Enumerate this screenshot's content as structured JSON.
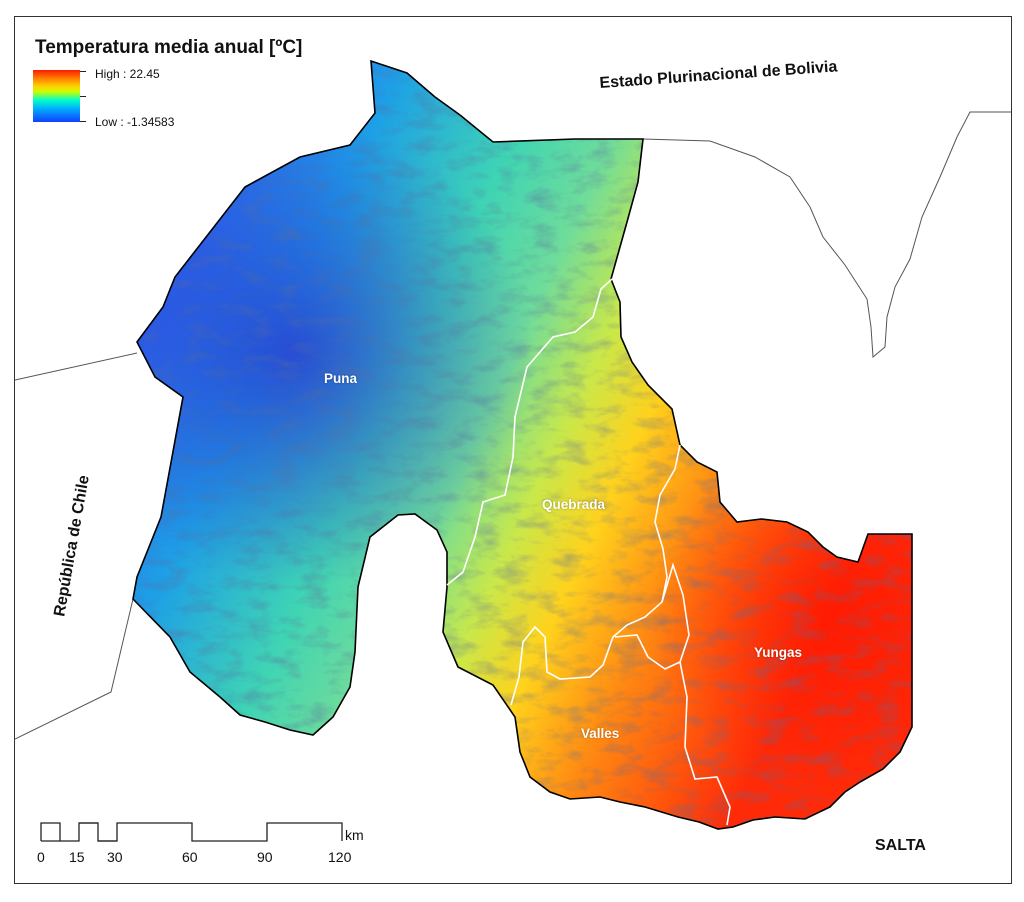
{
  "legend": {
    "title": "Temperatura media anual [ºC]",
    "high_label": "High : 22.45",
    "low_label": "Low : -1.34583",
    "high_value": 22.45,
    "low_value": -1.34583,
    "ramp_colors": [
      "#ff1a00",
      "#ff7a00",
      "#ffd400",
      "#c8ff00",
      "#00ffcc",
      "#00aaff",
      "#1040ff"
    ]
  },
  "neighbors": {
    "bolivia": "Estado Plurinacional de Bolivia",
    "chile": "República de Chile",
    "salta": "SALTA"
  },
  "regions": {
    "puna": "Puna",
    "quebrada": "Quebrada",
    "valles": "Valles",
    "yungas": "Yungas"
  },
  "scale_bar": {
    "unit": "km",
    "ticks": [
      "0",
      "15",
      "30",
      "60",
      "90",
      "120"
    ]
  },
  "colors": {
    "region_boundary": "#ffffff",
    "province_outline": "#000000",
    "neighbor_boundary": "#555555"
  }
}
